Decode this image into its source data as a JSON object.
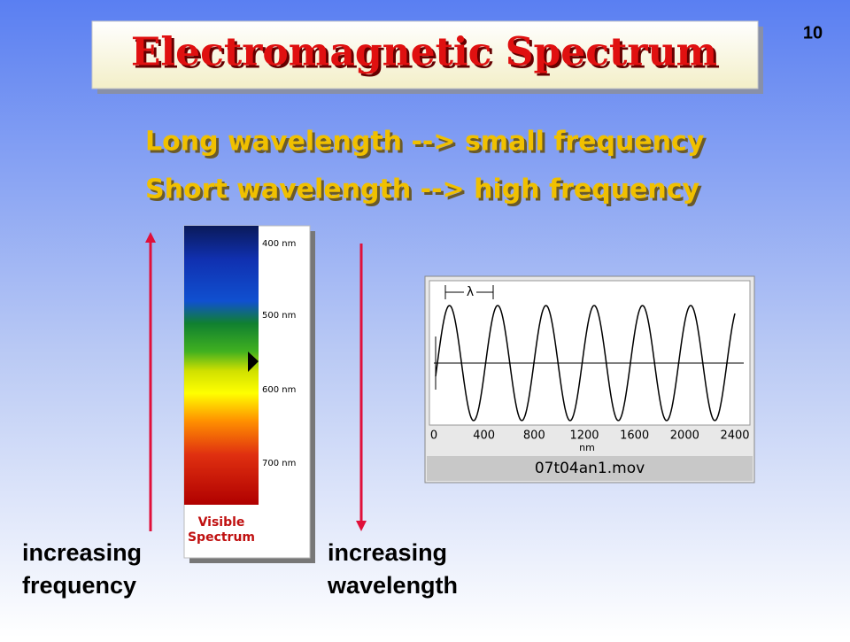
{
  "slide_number": "10",
  "title": "Electromagnetic Spectrum",
  "lines": [
    "Long wavelength --> small frequency",
    "Short wavelength --> high frequency"
  ],
  "spectrum": {
    "labels": [
      "400 nm",
      "500 nm",
      "600 nm",
      "700 nm"
    ],
    "caption": [
      "Visible",
      "Spectrum"
    ]
  },
  "wave": {
    "lambda": "λ",
    "axis_labels": [
      "0",
      "400",
      "800",
      "1200",
      "1600",
      "2000",
      "2400"
    ],
    "unit": "nm",
    "filename": "07t04an1.mov"
  },
  "left_arrow": [
    "increasing",
    "frequency"
  ],
  "right_arrow": [
    "increasing",
    "wavelength"
  ]
}
